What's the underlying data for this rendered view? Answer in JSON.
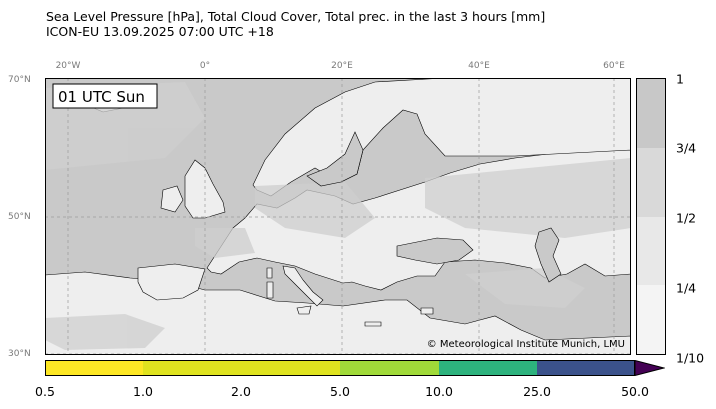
{
  "title_line1": "Sea Level Pressure [hPa], Total Cloud Cover, Total prec. in the last 3 hours [mm]",
  "title_line2": "ICON-EU 13.09.2025 07:00 UTC +18",
  "time_label": "01 UTC Sun",
  "credit": "© Meteorological Institute Munich, LMU",
  "longitude_labels": [
    {
      "text": "20°W",
      "lon": -20
    },
    {
      "text": "0°",
      "lon": 0
    },
    {
      "text": "20°E",
      "lon": 20
    },
    {
      "text": "40°E",
      "lon": 40
    },
    {
      "text": "60°E",
      "lon": 60
    }
  ],
  "latitude_labels": [
    {
      "text": "70°N",
      "lat": 70
    },
    {
      "text": "50°N",
      "lat": 50
    },
    {
      "text": "30°N",
      "lat": 30
    }
  ],
  "cloud_cover_colorbar": {
    "labels": [
      "1",
      "3/4",
      "1/2",
      "1/4",
      "1/10"
    ],
    "colors": [
      "#c8c8c8",
      "#d9d9d9",
      "#e8e8e8",
      "#f4f4f4"
    ]
  },
  "precip_colorbar": {
    "labels": [
      "0.5",
      "1.0",
      "2.0",
      "5.0",
      "10.0",
      "25.0",
      "50.0"
    ],
    "colors": [
      "#fde725",
      "#dfe31f",
      "#a0da39",
      "#2db27d",
      "#3b528b"
    ],
    "extend_color": "#440154"
  },
  "colors": {
    "ocean": "#c9c9c9",
    "land_clear": "#ffffff",
    "land_cloud": "#e2e2e2",
    "coast": "#000000",
    "grid": "#9a9a9a"
  }
}
